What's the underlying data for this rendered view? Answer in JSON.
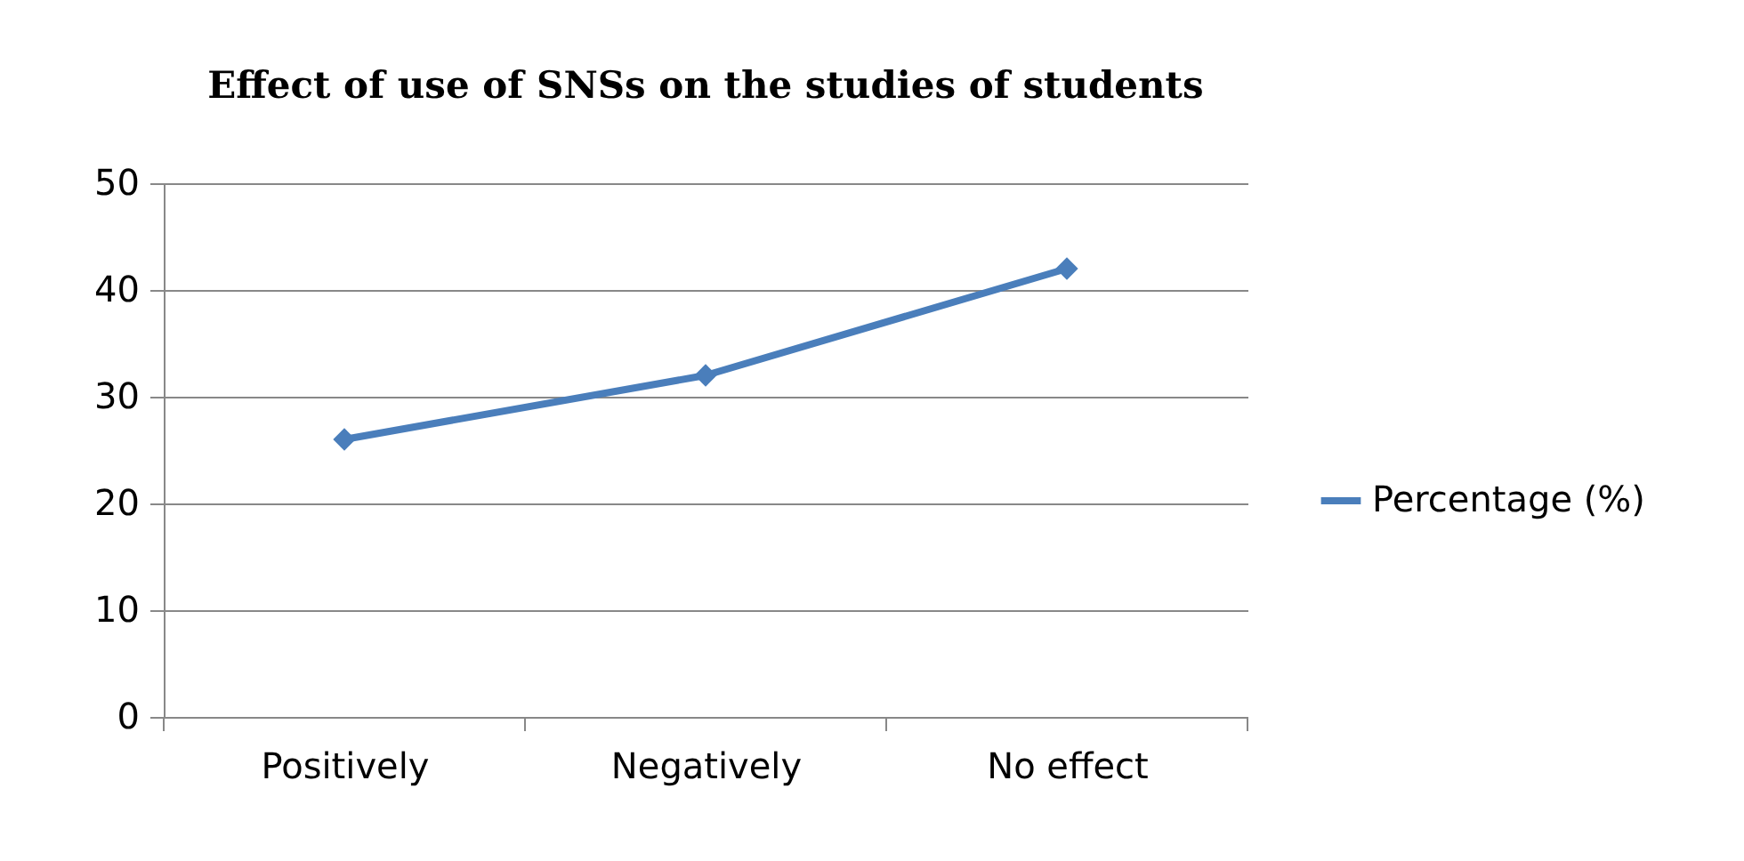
{
  "chart_data": {
    "type": "line",
    "title": "Effect of use of SNSs on the studies of students",
    "categories": [
      "Positively",
      "Negatively",
      "No effect"
    ],
    "series": [
      {
        "name": "Percentage (%)",
        "color": "#4a7ebb",
        "values": [
          26,
          32,
          42
        ]
      }
    ],
    "ylim": [
      0,
      50
    ],
    "yticks": [
      0,
      10,
      20,
      30,
      40,
      50
    ],
    "grid": "y",
    "legend": "right",
    "marker": "diamond",
    "line_style": "solid"
  }
}
